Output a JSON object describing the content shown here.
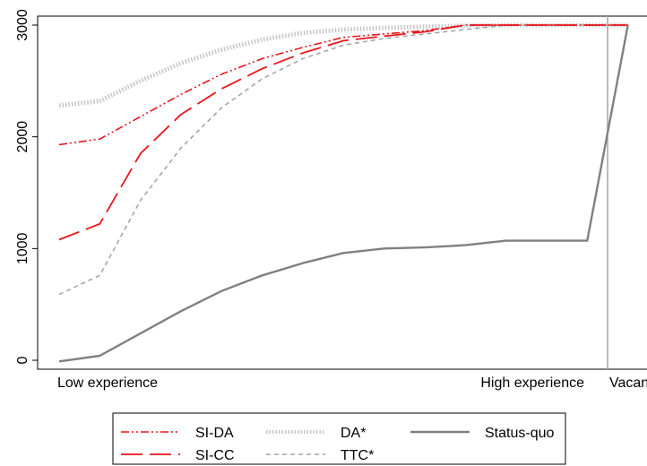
{
  "chart_data": {
    "type": "line",
    "title": "",
    "xlabel": "",
    "ylabel": "",
    "x": [
      0,
      1,
      2,
      3,
      4,
      5,
      6,
      7,
      8,
      9,
      10,
      11,
      12,
      13,
      14
    ],
    "x_range": [
      0,
      15
    ],
    "ylim": [
      -80,
      3080
    ],
    "y_ticks": [
      0,
      1000,
      2000,
      3000
    ],
    "y_tick_labels": [
      "0",
      "1000",
      "2000",
      "3000"
    ],
    "grid": false,
    "legend_position": "bottom",
    "category_labels": [
      {
        "x": 0,
        "text": "Low experience",
        "anchor": "start"
      },
      {
        "x": 13,
        "text": "High experience",
        "anchor": "end"
      },
      {
        "x": 14,
        "text": "Vacant",
        "anchor": "start"
      }
    ],
    "reference_line_x": 13.5,
    "series": [
      {
        "name": "SI-DA",
        "color": "#e8161c",
        "dash": "9,3,2,3,2,3",
        "width": 1.6,
        "values": [
          1930,
          1980,
          2180,
          2380,
          2560,
          2700,
          2800,
          2890,
          2920,
          2950,
          3000,
          3000,
          3000,
          3000,
          3000
        ]
      },
      {
        "name": "SI-CC",
        "color": "#e8161c",
        "dash": "24,8",
        "width": 1.8,
        "values": [
          1080,
          1220,
          1850,
          2200,
          2430,
          2610,
          2750,
          2860,
          2900,
          2940,
          3000,
          3000,
          3000,
          3000,
          3000
        ]
      },
      {
        "name": "DA*",
        "color": "#c4c4c4",
        "dash": "1.5,2",
        "width": 5,
        "values": [
          2280,
          2320,
          2500,
          2660,
          2780,
          2870,
          2930,
          2960,
          2975,
          2985,
          2995,
          3000,
          3000,
          3000,
          3000
        ]
      },
      {
        "name": "TTC*",
        "color": "#a0a0a0",
        "dash": "5,4",
        "width": 1.5,
        "values": [
          590,
          760,
          1430,
          1900,
          2260,
          2520,
          2700,
          2820,
          2880,
          2920,
          2960,
          3000,
          3000,
          3000,
          3000
        ]
      },
      {
        "name": "Status-quo",
        "color": "#808080",
        "dash": "",
        "width": 2.4,
        "values": [
          -10,
          40,
          240,
          440,
          620,
          760,
          870,
          960,
          1000,
          1010,
          1030,
          1070,
          1070,
          1070,
          3000
        ]
      }
    ]
  }
}
